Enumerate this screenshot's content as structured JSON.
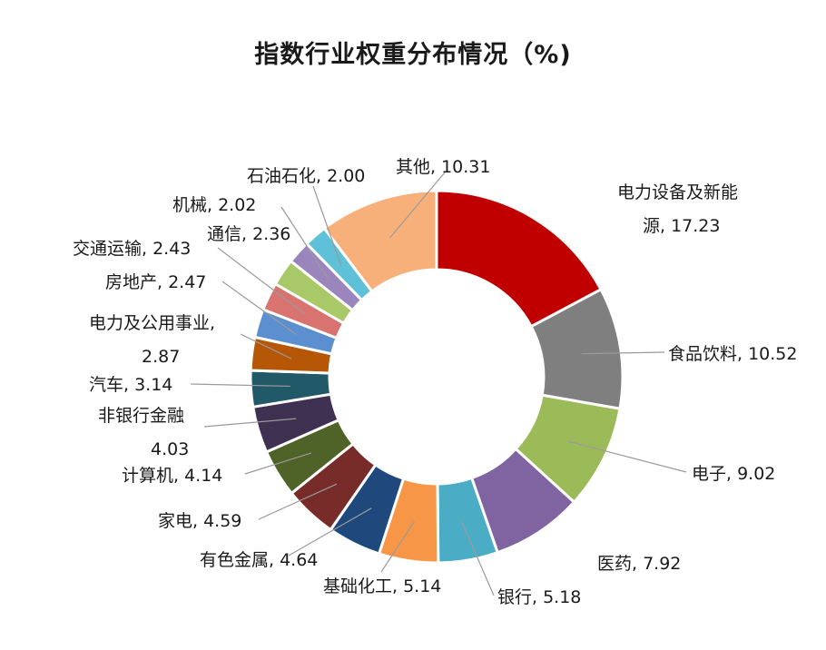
{
  "chart_data": {
    "type": "pie",
    "subtype": "donut",
    "title": "指数行业权重分布情况（%)",
    "legend": "none",
    "slices": [
      {
        "name": "电力设备及新能源",
        "value": 17.23,
        "color": "#c00000",
        "label_lines": [
          "电力设备及新能",
          "源, 17.23"
        ]
      },
      {
        "name": "食品饮料",
        "value": 10.52,
        "color": "#7f7f7f",
        "label_lines": [
          "食品饮料, 10.52"
        ]
      },
      {
        "name": "电子",
        "value": 9.02,
        "color": "#9bbb59",
        "label_lines": [
          "电子, 9.02"
        ]
      },
      {
        "name": "医药",
        "value": 7.92,
        "color": "#8064a2",
        "label_lines": [
          "医药, 7.92"
        ]
      },
      {
        "name": "银行",
        "value": 5.18,
        "color": "#4bacc6",
        "label_lines": [
          "银行, 5.18"
        ]
      },
      {
        "name": "基础化工",
        "value": 5.14,
        "color": "#f79646",
        "label_lines": [
          "基础化工, 5.14"
        ]
      },
      {
        "name": "有色金属",
        "value": 4.64,
        "color": "#1f497d",
        "label_lines": [
          "有色金属, 4.64"
        ]
      },
      {
        "name": "家电",
        "value": 4.59,
        "color": "#772c2a",
        "label_lines": [
          "家电, 4.59"
        ]
      },
      {
        "name": "计算机",
        "value": 4.14,
        "color": "#4f6228",
        "label_lines": [
          "计算机, 4.14"
        ]
      },
      {
        "name": "非银行金融",
        "value": 4.03,
        "color": "#3f3151",
        "label_lines": [
          "非银行金融",
          "4.03"
        ]
      },
      {
        "name": "汽车",
        "value": 3.14,
        "color": "#215968",
        "label_lines": [
          "汽车, 3.14"
        ]
      },
      {
        "name": "电力及公用事业",
        "value": 2.87,
        "color": "#b65708",
        "label_lines": [
          "电力及公用事业,",
          "2.87"
        ]
      },
      {
        "name": "房地产",
        "value": 2.47,
        "color": "#5b8fd0",
        "label_lines": [
          "房地产, 2.47"
        ]
      },
      {
        "name": "交通运输",
        "value": 2.43,
        "color": "#d9736f",
        "label_lines": [
          "交通运输, 2.43"
        ]
      },
      {
        "name": "通信",
        "value": 2.36,
        "color": "#a9c969",
        "label_lines": [
          "通信, 2.36"
        ]
      },
      {
        "name": "机械",
        "value": 2.02,
        "color": "#9a86bd",
        "label_lines": [
          "机械, 2.02"
        ]
      },
      {
        "name": "石油石化",
        "value": 2.0,
        "color": "#5fc1d8",
        "label_lines": [
          "石油石化, 2.00"
        ]
      },
      {
        "name": "其他",
        "value": 10.31,
        "color": "#f7b07a",
        "label_lines": [
          "其他, 10.31"
        ]
      }
    ]
  }
}
